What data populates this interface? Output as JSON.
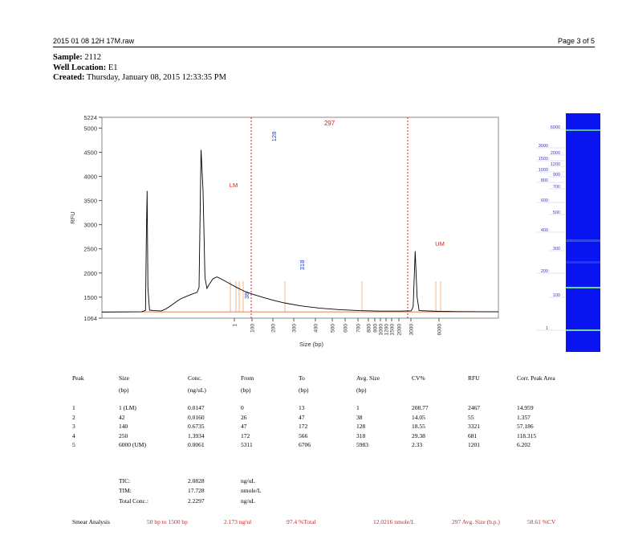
{
  "header": {
    "filename": "2015 01 08 12H 17M.raw",
    "page": "Page 3 of 5"
  },
  "sample": {
    "sample_label": "Sample:",
    "sample_value": "2112",
    "well_label": "Well Location:",
    "well_value": "E1",
    "created_label": "Created:",
    "created_value": "Thursday, January 08, 2015 12:33:35 PM"
  },
  "chart_data": {
    "type": "line",
    "ylabel": "RFU",
    "xlabel": "Size (bp)",
    "ylim": [
      1064,
      5224
    ],
    "y_ticks": [
      "5224",
      "5000",
      "4500",
      "4000",
      "3500",
      "3000",
      "2500",
      "2000",
      "1500",
      "1064"
    ],
    "x_ticks": [
      "1",
      "100",
      "200",
      "300",
      "400",
      "500",
      "600",
      "700",
      "800",
      "900",
      "1000",
      "1200",
      "1500",
      "2000",
      "3000",
      "6000"
    ],
    "region_label": "297",
    "peak_labels": [
      {
        "text": "LM",
        "size": "1",
        "rfu": 3700,
        "color": "#e02020"
      },
      {
        "text": "38",
        "size": "42",
        "rfu": 1280,
        "color": "#2040d0"
      },
      {
        "text": "128",
        "size": "140",
        "rfu": 4720,
        "color": "#2040d0"
      },
      {
        "text": "318",
        "size": "250",
        "rfu": 1960,
        "color": "#2040d0"
      },
      {
        "text": "UM",
        "size": "6000",
        "rfu": 2470,
        "color": "#e02020"
      }
    ],
    "trace": [
      [
        0,
        1190
      ],
      [
        0.1,
        1195
      ],
      [
        0.11,
        1225
      ],
      [
        0.112,
        2700
      ],
      [
        0.114,
        3700
      ],
      [
        0.116,
        1700
      ],
      [
        0.12,
        1230
      ],
      [
        0.13,
        1220
      ],
      [
        0.15,
        1215
      ],
      [
        0.16,
        1250
      ],
      [
        0.17,
        1300
      ],
      [
        0.18,
        1360
      ],
      [
        0.19,
        1420
      ],
      [
        0.2,
        1470
      ],
      [
        0.22,
        1540
      ],
      [
        0.24,
        1600
      ],
      [
        0.245,
        1700
      ],
      [
        0.25,
        4550
      ],
      [
        0.255,
        3700
      ],
      [
        0.26,
        1900
      ],
      [
        0.265,
        1680
      ],
      [
        0.27,
        1760
      ],
      [
        0.28,
        1880
      ],
      [
        0.29,
        1920
      ],
      [
        0.3,
        1880
      ],
      [
        0.32,
        1790
      ],
      [
        0.34,
        1700
      ],
      [
        0.36,
        1620
      ],
      [
        0.38,
        1560
      ],
      [
        0.4,
        1510
      ],
      [
        0.43,
        1440
      ],
      [
        0.46,
        1380
      ],
      [
        0.5,
        1320
      ],
      [
        0.55,
        1270
      ],
      [
        0.6,
        1240
      ],
      [
        0.65,
        1220
      ],
      [
        0.7,
        1210
      ],
      [
        0.75,
        1210
      ],
      [
        0.78,
        1215
      ],
      [
        0.785,
        1300
      ],
      [
        0.79,
        2450
      ],
      [
        0.795,
        1500
      ],
      [
        0.8,
        1220
      ],
      [
        0.85,
        1205
      ],
      [
        0.9,
        1200
      ],
      [
        1.0,
        1195
      ]
    ],
    "gel_marker_labels": [
      "6000",
      "3000",
      "2000",
      "1500",
      "1200",
      "1000",
      "900",
      "800",
      "700",
      "600",
      "500",
      "400",
      "300",
      "200",
      "100",
      "1"
    ]
  },
  "peak_table": {
    "headers": [
      [
        "Peak",
        ""
      ],
      [
        "Size",
        "(bp)"
      ],
      [
        "Conc.",
        "(ng/uL)"
      ],
      [
        "From",
        "(bp)"
      ],
      [
        "To",
        "(bp)"
      ],
      [
        "Avg. Size",
        "(bp)"
      ],
      [
        "CV%",
        ""
      ],
      [
        "RFU",
        ""
      ],
      [
        "Corr. Peak Area",
        ""
      ]
    ],
    "rows": [
      [
        "1",
        "1 (LM)",
        "0.0147",
        "0",
        "13",
        "1",
        "208.77",
        "2467",
        "14.959"
      ],
      [
        "2",
        "42",
        "0.0160",
        "26",
        "47",
        "38",
        "14.05",
        "55",
        "1.357"
      ],
      [
        "3",
        "140",
        "0.6735",
        "47",
        "172",
        "128",
        "18.55",
        "3321",
        "57.186"
      ],
      [
        "4",
        "250",
        "1.3934",
        "172",
        "566",
        "318",
        "29.38",
        "681",
        "118.315"
      ],
      [
        "5",
        "6000 (UM)",
        "0.0061",
        "5311",
        "6706",
        "5983",
        "2.33",
        "1201",
        "6.202"
      ]
    ]
  },
  "totals": [
    [
      "TIC:",
      "2.0828",
      "ng/uL"
    ],
    [
      "TIM:",
      "17.728",
      "nmole/L"
    ],
    [
      "Total Conc.:",
      "2.2297",
      "ng/uL"
    ]
  ],
  "smear": {
    "label": "Smear Analysis",
    "values": [
      "50 bp to 1500 bp",
      "2.173 ng/ul",
      "97.4 %Total",
      "12.0216 nmole/L",
      "297 Avg. Size (b.p.)",
      "58.61 %CV"
    ]
  }
}
